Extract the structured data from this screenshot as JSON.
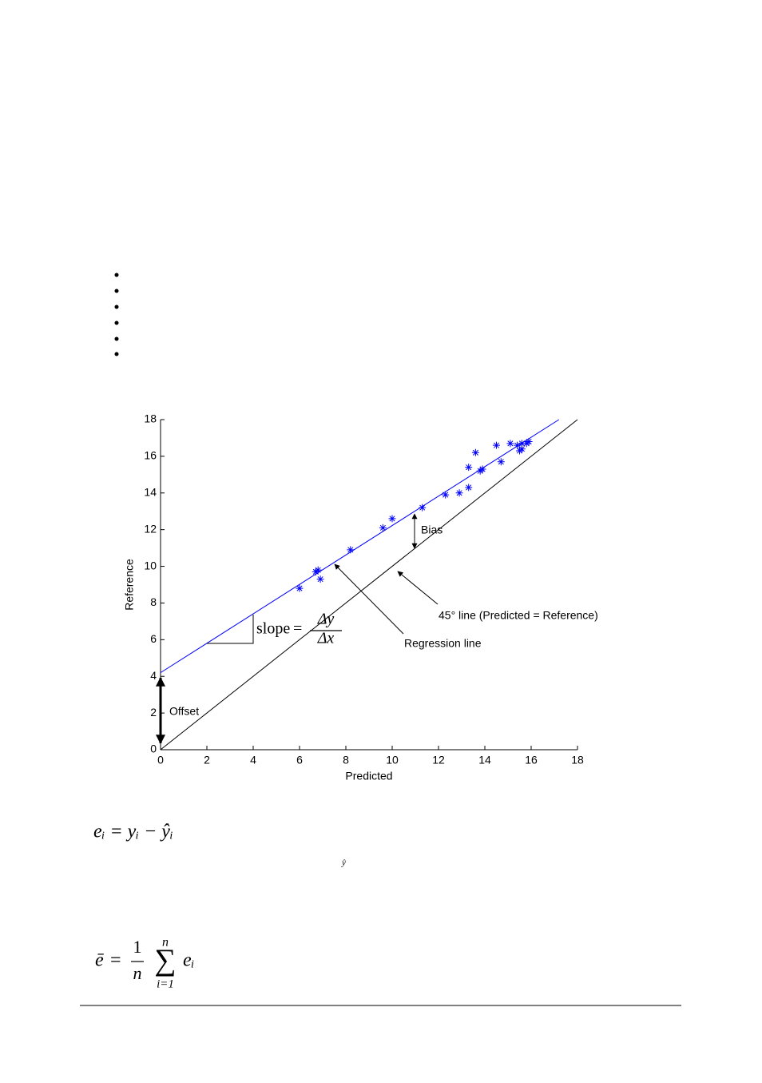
{
  "chart_data": {
    "type": "scatter",
    "xlabel": "Predicted",
    "ylabel": "Reference",
    "xlim": [
      0,
      18
    ],
    "ylim": [
      0,
      18
    ],
    "xticks": [
      0,
      2,
      4,
      6,
      8,
      10,
      12,
      14,
      16,
      18
    ],
    "yticks": [
      0,
      2,
      4,
      6,
      8,
      10,
      12,
      14,
      16,
      18
    ],
    "color": "#0000ff",
    "marker": "asterisk",
    "x": [
      6.0,
      6.7,
      6.8,
      6.9,
      8.2,
      9.6,
      10.0,
      11.3,
      12.3,
      12.9,
      13.3,
      13.3,
      13.6,
      13.8,
      13.9,
      14.5,
      14.7,
      15.1,
      15.4,
      15.5,
      15.6,
      15.6,
      15.8,
      15.9
    ],
    "values": [
      8.8,
      9.7,
      9.8,
      9.3,
      10.9,
      12.1,
      12.6,
      13.2,
      13.9,
      14.0,
      14.3,
      15.4,
      16.2,
      15.2,
      15.3,
      16.6,
      15.7,
      16.7,
      16.6,
      16.3,
      16.4,
      16.7,
      16.7,
      16.8
    ],
    "lines": [
      {
        "x": [
          0,
          17.2
        ],
        "values": [
          4.2,
          18
        ],
        "color": "#0000ff"
      },
      {
        "x": [
          0,
          18
        ],
        "values": [
          0,
          18
        ],
        "color": "#000000"
      }
    ],
    "annotations": [
      "Bias",
      "45° line (Predicted = Reference)",
      "Regression line",
      "Offset"
    ],
    "slope": {
      "label": "slope",
      "equals": "=",
      "numerator": "Δy",
      "denominator": "Δx"
    }
  },
  "equations": [
    {
      "text": "eᵢ = yᵢ − ŷᵢ"
    },
    {
      "note": "ŷ"
    },
    {
      "lhs": "ē",
      "equals": "=",
      "numerator": "1",
      "denominator": "n",
      "sum": "∑",
      "sum_upper": "n",
      "sum_lower": "i=1",
      "term": "eᵢ"
    }
  ]
}
